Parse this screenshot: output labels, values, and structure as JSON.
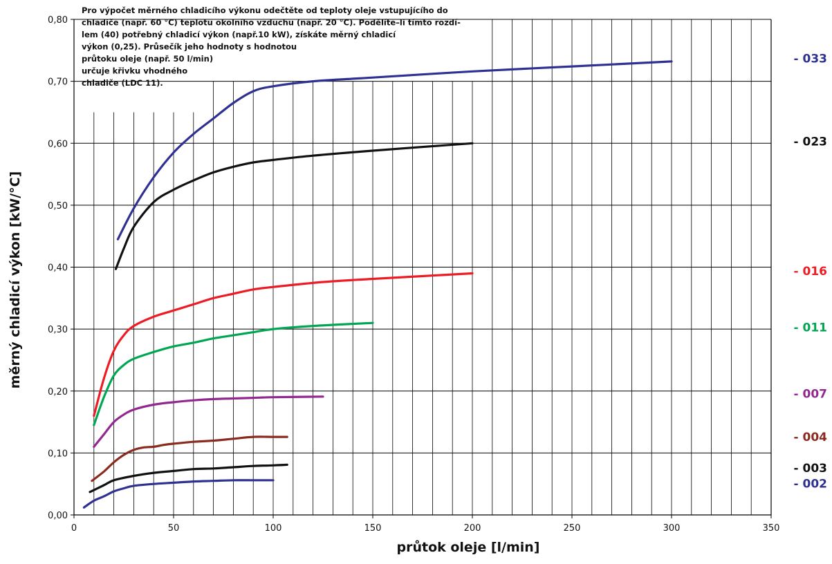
{
  "chart_data": {
    "type": "line",
    "xlabel": "průtok oleje [l/min]",
    "ylabel": "měrný chladicí výkon [kW/°C]",
    "xlim": [
      0,
      350
    ],
    "ylim": [
      0,
      0.8
    ],
    "x_ticks": [
      "0",
      "50",
      "100",
      "150",
      "200",
      "250",
      "300",
      "350"
    ],
    "y_ticks": [
      "0,00",
      "0,10",
      "0,20",
      "0,30",
      "0,40",
      "0,50",
      "0,60",
      "0,70",
      "0,80"
    ],
    "grid": true,
    "note": [
      "Pro výpočet měrného chladicího výkonu odečtěte od teploty  oleje vstupujícího do",
      "chladiče (např. 60 °C) teplotu okolního vzduchu (např. 20 °C). Podělíte–li tímto rozdí-",
      "lem (40) potřebný chladicí výkon (např.10 kW), získáte měrný chladicí",
      "výkon (0,25).  Průsečík jeho hodnoty s hodnotou",
      "průtoku oleje (např. 50 l/min)",
      "určuje křivku vhodného",
      "chladiče (LDC 11)."
    ],
    "series": [
      {
        "name": "- 033",
        "color": "#2e3192",
        "x": [
          22,
          30,
          40,
          50,
          60,
          70,
          80,
          90,
          100,
          120,
          150,
          200,
          250,
          300
        ],
        "y": [
          0.445,
          0.495,
          0.545,
          0.585,
          0.615,
          0.64,
          0.665,
          0.684,
          0.692,
          0.7,
          0.706,
          0.716,
          0.724,
          0.732
        ]
      },
      {
        "name": "- 023",
        "color": "#111111",
        "x": [
          21,
          25,
          30,
          40,
          50,
          60,
          70,
          80,
          90,
          100,
          120,
          150,
          200
        ],
        "y": [
          0.397,
          0.43,
          0.465,
          0.505,
          0.525,
          0.54,
          0.553,
          0.562,
          0.569,
          0.573,
          0.58,
          0.588,
          0.6
        ]
      },
      {
        "name": "- 016",
        "color": "#ed1c24",
        "x": [
          10,
          15,
          20,
          25,
          30,
          40,
          50,
          60,
          70,
          80,
          90,
          100,
          125,
          150,
          200
        ],
        "y": [
          0.16,
          0.22,
          0.265,
          0.29,
          0.305,
          0.32,
          0.33,
          0.34,
          0.35,
          0.357,
          0.364,
          0.368,
          0.376,
          0.381,
          0.39
        ]
      },
      {
        "name": "- 011",
        "color": "#00a651",
        "x": [
          10,
          15,
          20,
          25,
          30,
          40,
          50,
          60,
          70,
          80,
          90,
          100,
          120,
          150
        ],
        "y": [
          0.145,
          0.19,
          0.225,
          0.242,
          0.252,
          0.263,
          0.272,
          0.278,
          0.285,
          0.29,
          0.295,
          0.3,
          0.305,
          0.31
        ]
      },
      {
        "name": "- 007",
        "color": "#92278f",
        "x": [
          10,
          15,
          20,
          25,
          30,
          40,
          50,
          60,
          70,
          80,
          90,
          100,
          125
        ],
        "y": [
          0.11,
          0.13,
          0.15,
          0.162,
          0.17,
          0.178,
          0.182,
          0.185,
          0.187,
          0.188,
          0.189,
          0.19,
          0.191
        ]
      },
      {
        "name": "- 004",
        "color": "#8b2b1f",
        "x": [
          9,
          15,
          20,
          25,
          30,
          35,
          40,
          45,
          50,
          60,
          70,
          80,
          90,
          100,
          107
        ],
        "y": [
          0.055,
          0.07,
          0.085,
          0.097,
          0.105,
          0.109,
          0.11,
          0.113,
          0.115,
          0.118,
          0.12,
          0.123,
          0.126,
          0.126,
          0.126
        ]
      },
      {
        "name": "- 003",
        "color": "#111111",
        "x": [
          8,
          15,
          20,
          30,
          40,
          50,
          60,
          70,
          80,
          90,
          100,
          107
        ],
        "y": [
          0.037,
          0.048,
          0.056,
          0.063,
          0.068,
          0.071,
          0.074,
          0.075,
          0.077,
          0.079,
          0.08,
          0.081
        ]
      },
      {
        "name": "- 002",
        "color": "#2e3192",
        "x": [
          5,
          10,
          15,
          20,
          25,
          30,
          40,
          50,
          60,
          70,
          80,
          90,
          100
        ],
        "y": [
          0.012,
          0.023,
          0.03,
          0.038,
          0.043,
          0.047,
          0.05,
          0.052,
          0.054,
          0.055,
          0.056,
          0.056,
          0.056
        ]
      }
    ]
  }
}
